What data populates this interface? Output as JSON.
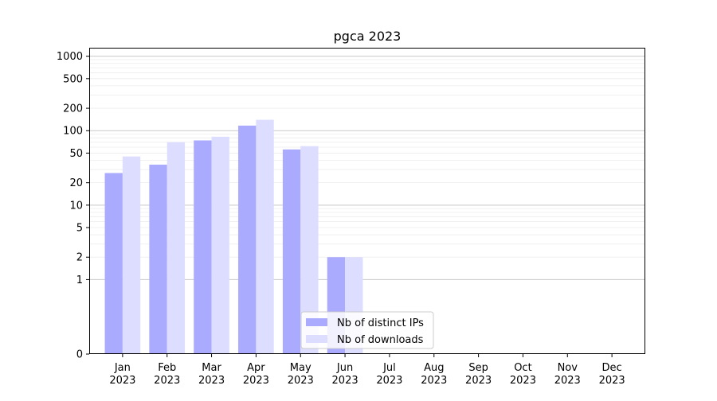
{
  "chart_data": {
    "type": "bar",
    "title": "pgca 2023",
    "xlabel": "",
    "ylabel": "",
    "yscale": "symlog",
    "ylim": [
      0,
      1300
    ],
    "yticks": [
      "0",
      "1",
      "2",
      "5",
      "10",
      "20",
      "50",
      "100",
      "200",
      "500",
      "1000"
    ],
    "grid": "horizontal",
    "legend_position": "lower-center",
    "categories": [
      [
        "Jan",
        "2023"
      ],
      [
        "Feb",
        "2023"
      ],
      [
        "Mar",
        "2023"
      ],
      [
        "Apr",
        "2023"
      ],
      [
        "May",
        "2023"
      ],
      [
        "Jun",
        "2023"
      ],
      [
        "Jul",
        "2023"
      ],
      [
        "Aug",
        "2023"
      ],
      [
        "Sep",
        "2023"
      ],
      [
        "Oct",
        "2023"
      ],
      [
        "Nov",
        "2023"
      ],
      [
        "Dec",
        "2023"
      ]
    ],
    "series": [
      {
        "name": "Nb of distinct IPs",
        "color": "#aaaaff",
        "values": [
          27,
          35,
          74,
          117,
          56,
          2,
          0,
          0,
          0,
          0,
          0,
          0
        ]
      },
      {
        "name": "Nb of downloads",
        "color": "#ddddff",
        "values": [
          45,
          70,
          83,
          140,
          62,
          2,
          0,
          0,
          0,
          0,
          0,
          0
        ]
      }
    ]
  }
}
